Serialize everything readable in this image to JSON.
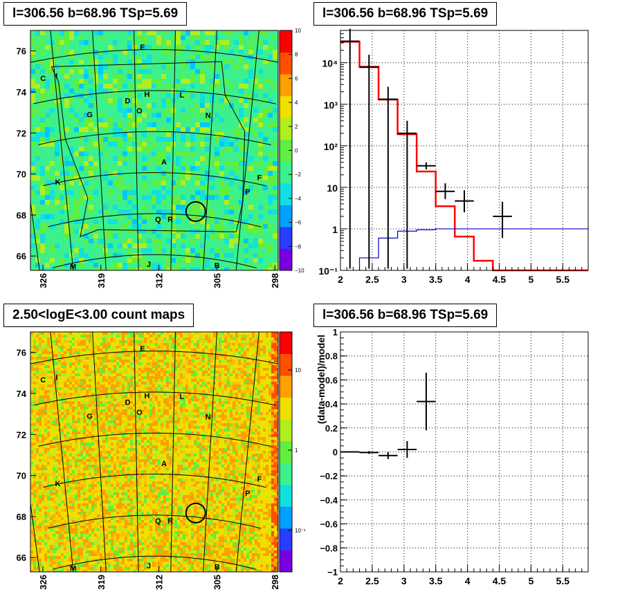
{
  "panels": {
    "tl": {
      "title": "l=306.56 b=68.96 TSp=5.69",
      "lon_ticks": [
        "326",
        "319",
        "312",
        "305",
        "298"
      ],
      "lat_ticks": [
        "76",
        "74",
        "72",
        "70",
        "68",
        "66"
      ],
      "colorbar_ticks": [
        "10",
        "8",
        "6",
        "4",
        "2",
        "0",
        "−2",
        "−4",
        "−6",
        "−8",
        "−10"
      ],
      "colorbar_colors": [
        "#7a00e0",
        "#2a3cff",
        "#00a0ff",
        "#10e0e0",
        "#3cf08c",
        "#60ee40",
        "#b0ee20",
        "#f0e000",
        "#ffa000",
        "#ff5000",
        "#ff0000"
      ]
    },
    "bl": {
      "title": "2.50<logE<3.00 count maps",
      "lon_ticks": [
        "326",
        "319",
        "312",
        "305",
        "298"
      ],
      "lat_ticks": [
        "76",
        "74",
        "72",
        "70",
        "68",
        "66"
      ],
      "colorbar_ticks": [
        "10",
        "1",
        "10⁻¹"
      ],
      "colorbar_colors": [
        "#7a00e0",
        "#2a3cff",
        "#00a0ff",
        "#10e0e0",
        "#3cf08c",
        "#60ee40",
        "#b0ee20",
        "#f0e000",
        "#ffa000",
        "#ff5000",
        "#ff0000"
      ]
    },
    "tr": {
      "title": "l=306.56 b=68.96 TSp=5.69"
    },
    "br": {
      "title": "l=306.56 b=68.96 TSp=5.69"
    }
  },
  "source_labels": [
    {
      "label": "E",
      "lon": 314.0,
      "lat": 76.0
    },
    {
      "label": "C",
      "lon": 326.5,
      "lat": 75.0
    },
    {
      "label": "I",
      "lon": 324.8,
      "lat": 75.0
    },
    {
      "label": "H",
      "lon": 313.5,
      "lat": 73.7
    },
    {
      "label": "D",
      "lon": 316.0,
      "lat": 73.4
    },
    {
      "label": "L",
      "lon": 309.0,
      "lat": 73.7
    },
    {
      "label": "G",
      "lon": 321.0,
      "lat": 72.9
    },
    {
      "label": "O",
      "lon": 314.5,
      "lat": 72.9
    },
    {
      "label": "N",
      "lon": 305.5,
      "lat": 72.8
    },
    {
      "label": "A",
      "lon": 311.2,
      "lat": 70.4
    },
    {
      "label": "F",
      "lon": 298.0,
      "lat": 70.2
    },
    {
      "label": "K",
      "lon": 326.0,
      "lat": 69.9
    },
    {
      "label": "P",
      "lon": 299.4,
      "lat": 69.4
    },
    {
      "label": "Q",
      "lon": 312.0,
      "lat": 67.6
    },
    {
      "label": "R",
      "lon": 310.2,
      "lat": 67.6
    },
    {
      "label": "M",
      "lon": 325.0,
      "lat": 65.7
    },
    {
      "label": "B",
      "lon": 302.9,
      "lat": 65.6
    },
    {
      "label": "J",
      "lon": 313.4,
      "lat": 65.4
    }
  ],
  "roi_circle": {
    "lon": 306.56,
    "lat": 68.2
  },
  "chart_data": [
    {
      "type": "line",
      "panel": "spectrum",
      "title": "l=306.56 b=68.96 TSp=5.69",
      "xlabel": "",
      "ylabel": "",
      "xlim": [
        2,
        5.9
      ],
      "ylim": [
        0.1,
        60000
      ],
      "yscale": "log",
      "x_ticks": [
        "2",
        "2.5",
        "3",
        "3.5",
        "4",
        "4.5",
        "5",
        "5.5"
      ],
      "y_ticks": [
        "10⁻¹",
        "1",
        "10",
        "10²",
        "10³",
        "10⁴"
      ],
      "grid": true,
      "series": [
        {
          "color": "#ff0000",
          "bin_edges": [
            2.0,
            2.3,
            2.6,
            2.9,
            3.2,
            3.5,
            3.8,
            4.1,
            4.4,
            5.9
          ],
          "values": [
            32000,
            8000,
            1300,
            190,
            24,
            3.5,
            0.65,
            0.17,
            0.1
          ]
        },
        {
          "color": "#0000cc",
          "bin_edges": [
            2.3,
            2.6,
            2.9,
            3.2,
            3.5,
            5.9
          ],
          "values": [
            0.2,
            0.6,
            0.88,
            0.95,
            1.0
          ]
        }
      ],
      "points": [
        {
          "x": 2.15,
          "y": 33000,
          "xerr": 0.15,
          "yerr_lo": 33000,
          "yerr_hi": 33000
        },
        {
          "x": 2.45,
          "y": 7800,
          "xerr": 0.15,
          "yerr_lo": 7800,
          "yerr_hi": 7800
        },
        {
          "x": 2.75,
          "y": 1320,
          "xerr": 0.15,
          "yerr_lo": 1320,
          "yerr_hi": 1320
        },
        {
          "x": 3.05,
          "y": 200,
          "xerr": 0.15,
          "yerr_lo": 200,
          "yerr_hi": 200
        },
        {
          "x": 3.35,
          "y": 33,
          "xerr": 0.15,
          "yerr_lo": 6,
          "yerr_hi": 7
        },
        {
          "x": 3.65,
          "y": 8,
          "xerr": 0.15,
          "yerr_lo": 2.8,
          "yerr_hi": 4.5
        },
        {
          "x": 3.95,
          "y": 4.7,
          "xerr": 0.15,
          "yerr_lo": 2.2,
          "yerr_hi": 3.8
        },
        {
          "x": 4.55,
          "y": 2,
          "xerr": 0.15,
          "yerr_lo": 1.4,
          "yerr_hi": 2.5
        }
      ]
    },
    {
      "type": "scatter",
      "panel": "residuals",
      "title": "l=306.56 b=68.96 TSp=5.69",
      "xlabel": "",
      "ylabel": "(data-model)/model",
      "xlim": [
        2,
        5.9
      ],
      "ylim": [
        -1,
        1
      ],
      "x_ticks": [
        "2",
        "2.5",
        "3",
        "3.5",
        "4",
        "4.5",
        "5",
        "5.5"
      ],
      "y_ticks": [
        "1",
        "0.8",
        "0.6",
        "0.4",
        "0.2",
        "0",
        "−0.2",
        "−0.4",
        "−0.6",
        "−0.8",
        "−1"
      ],
      "grid": true,
      "points": [
        {
          "x": 2.15,
          "y": 0.0,
          "xerr": 0.15,
          "yerr": 0.006
        },
        {
          "x": 2.45,
          "y": -0.005,
          "xerr": 0.15,
          "yerr": 0.012
        },
        {
          "x": 2.75,
          "y": -0.03,
          "xerr": 0.15,
          "yerr": 0.03
        },
        {
          "x": 3.05,
          "y": 0.02,
          "xerr": 0.15,
          "yerr": 0.07
        },
        {
          "x": 3.35,
          "y": 0.42,
          "xerr": 0.15,
          "yerr": 0.24
        }
      ]
    }
  ]
}
